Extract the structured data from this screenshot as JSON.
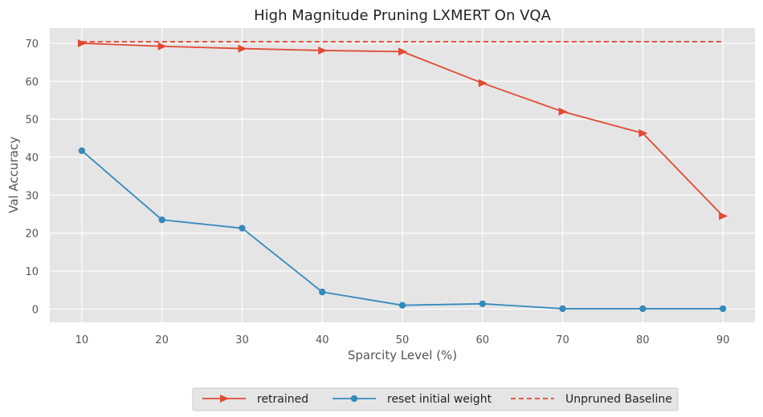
{
  "chart_data": {
    "type": "line",
    "title": "High Magnitude Pruning LXMERT On VQA",
    "xlabel": "Sparcity Level (%)",
    "ylabel": "Val Accuracy",
    "x": [
      10,
      20,
      30,
      40,
      50,
      60,
      70,
      80,
      90
    ],
    "xlim": [
      6,
      94
    ],
    "ylim": [
      -3.5,
      74
    ],
    "xticks": [
      10,
      20,
      30,
      40,
      50,
      60,
      70,
      80,
      90
    ],
    "yticks": [
      0,
      10,
      20,
      30,
      40,
      50,
      60,
      70
    ],
    "grid": true,
    "legend_position": "bottom-center",
    "series": [
      {
        "name": "retrained",
        "values": [
          70.0,
          69.2,
          68.6,
          68.1,
          67.8,
          59.5,
          52.0,
          46.3,
          24.5
        ],
        "color": "#E24A33",
        "marker": "triangle-right",
        "line_style": "solid"
      },
      {
        "name": "reset initial weight",
        "values": [
          41.7,
          23.5,
          21.3,
          4.5,
          1.0,
          1.4,
          0.1,
          0.1,
          0.1
        ],
        "color": "#348ABD",
        "marker": "circle",
        "line_style": "solid"
      },
      {
        "name": "Unpruned Baseline",
        "values": [
          70.4,
          70.4,
          70.4,
          70.4,
          70.4,
          70.4,
          70.4,
          70.4,
          70.4
        ],
        "color": "#E24A33",
        "marker": "none",
        "line_style": "dashed"
      }
    ]
  }
}
